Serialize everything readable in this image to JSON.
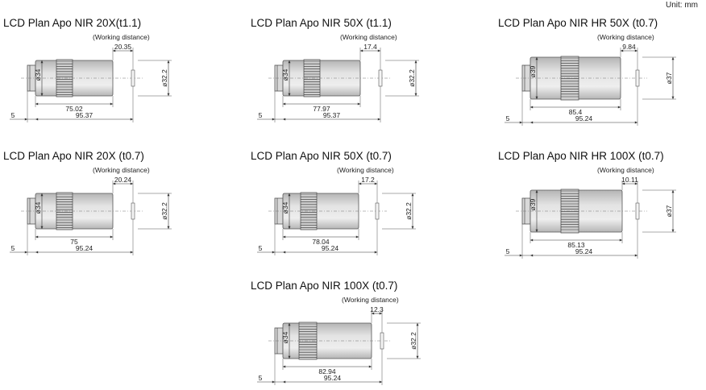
{
  "unit_label": "Unit: mm",
  "working_distance_label": "(Working distance)",
  "colors": {
    "barrel": "#e3e3e3",
    "barrel_edge": "#b5b5b5",
    "knurl": "#cfcfcf",
    "lines": "#333333"
  },
  "objectives": [
    {
      "title": "LCD Plan Apo NIR 20X(t1.1)",
      "diameter": "ø34",
      "front_diameter": "ø32.2",
      "wd": "20.35",
      "length": "75.02",
      "parfocal": "95.37",
      "thread": "5"
    },
    {
      "title": "LCD Plan Apo NIR 50X (t1.1)",
      "diameter": "ø34",
      "front_diameter": "ø32.2",
      "wd": "17.4",
      "length": "77.97",
      "parfocal": "95.37",
      "thread": "5"
    },
    {
      "title": "LCD Plan Apo NIR HR 50X (t0.7)",
      "diameter": "ø39",
      "front_diameter": "ø37",
      "wd": "9.84",
      "length": "85.4",
      "parfocal": "95.24",
      "thread": "5"
    },
    {
      "title": "LCD Plan Apo NIR 20X (t0.7)",
      "diameter": "ø34",
      "front_diameter": "ø32.2",
      "wd": "20.24",
      "length": "75",
      "parfocal": "95.24",
      "thread": "5"
    },
    {
      "title": "LCD Plan Apo NIR 50X (t0.7)",
      "diameter": "ø34",
      "front_diameter": "ø32.2",
      "wd": "17.2",
      "length": "78.04",
      "parfocal": "95.24",
      "thread": "5"
    },
    {
      "title": "LCD Plan Apo NIR HR 100X (t0.7)",
      "diameter": "ø39",
      "front_diameter": "ø37",
      "wd": "10.11",
      "length": "85.13",
      "parfocal": "95.24",
      "thread": "5"
    },
    {
      "title": "LCD Plan Apo NIR 100X (t0.7)",
      "diameter": "ø34",
      "front_diameter": "ø32.2",
      "wd": "12.3",
      "length": "82.94",
      "parfocal": "95.24",
      "thread": "5"
    }
  ]
}
